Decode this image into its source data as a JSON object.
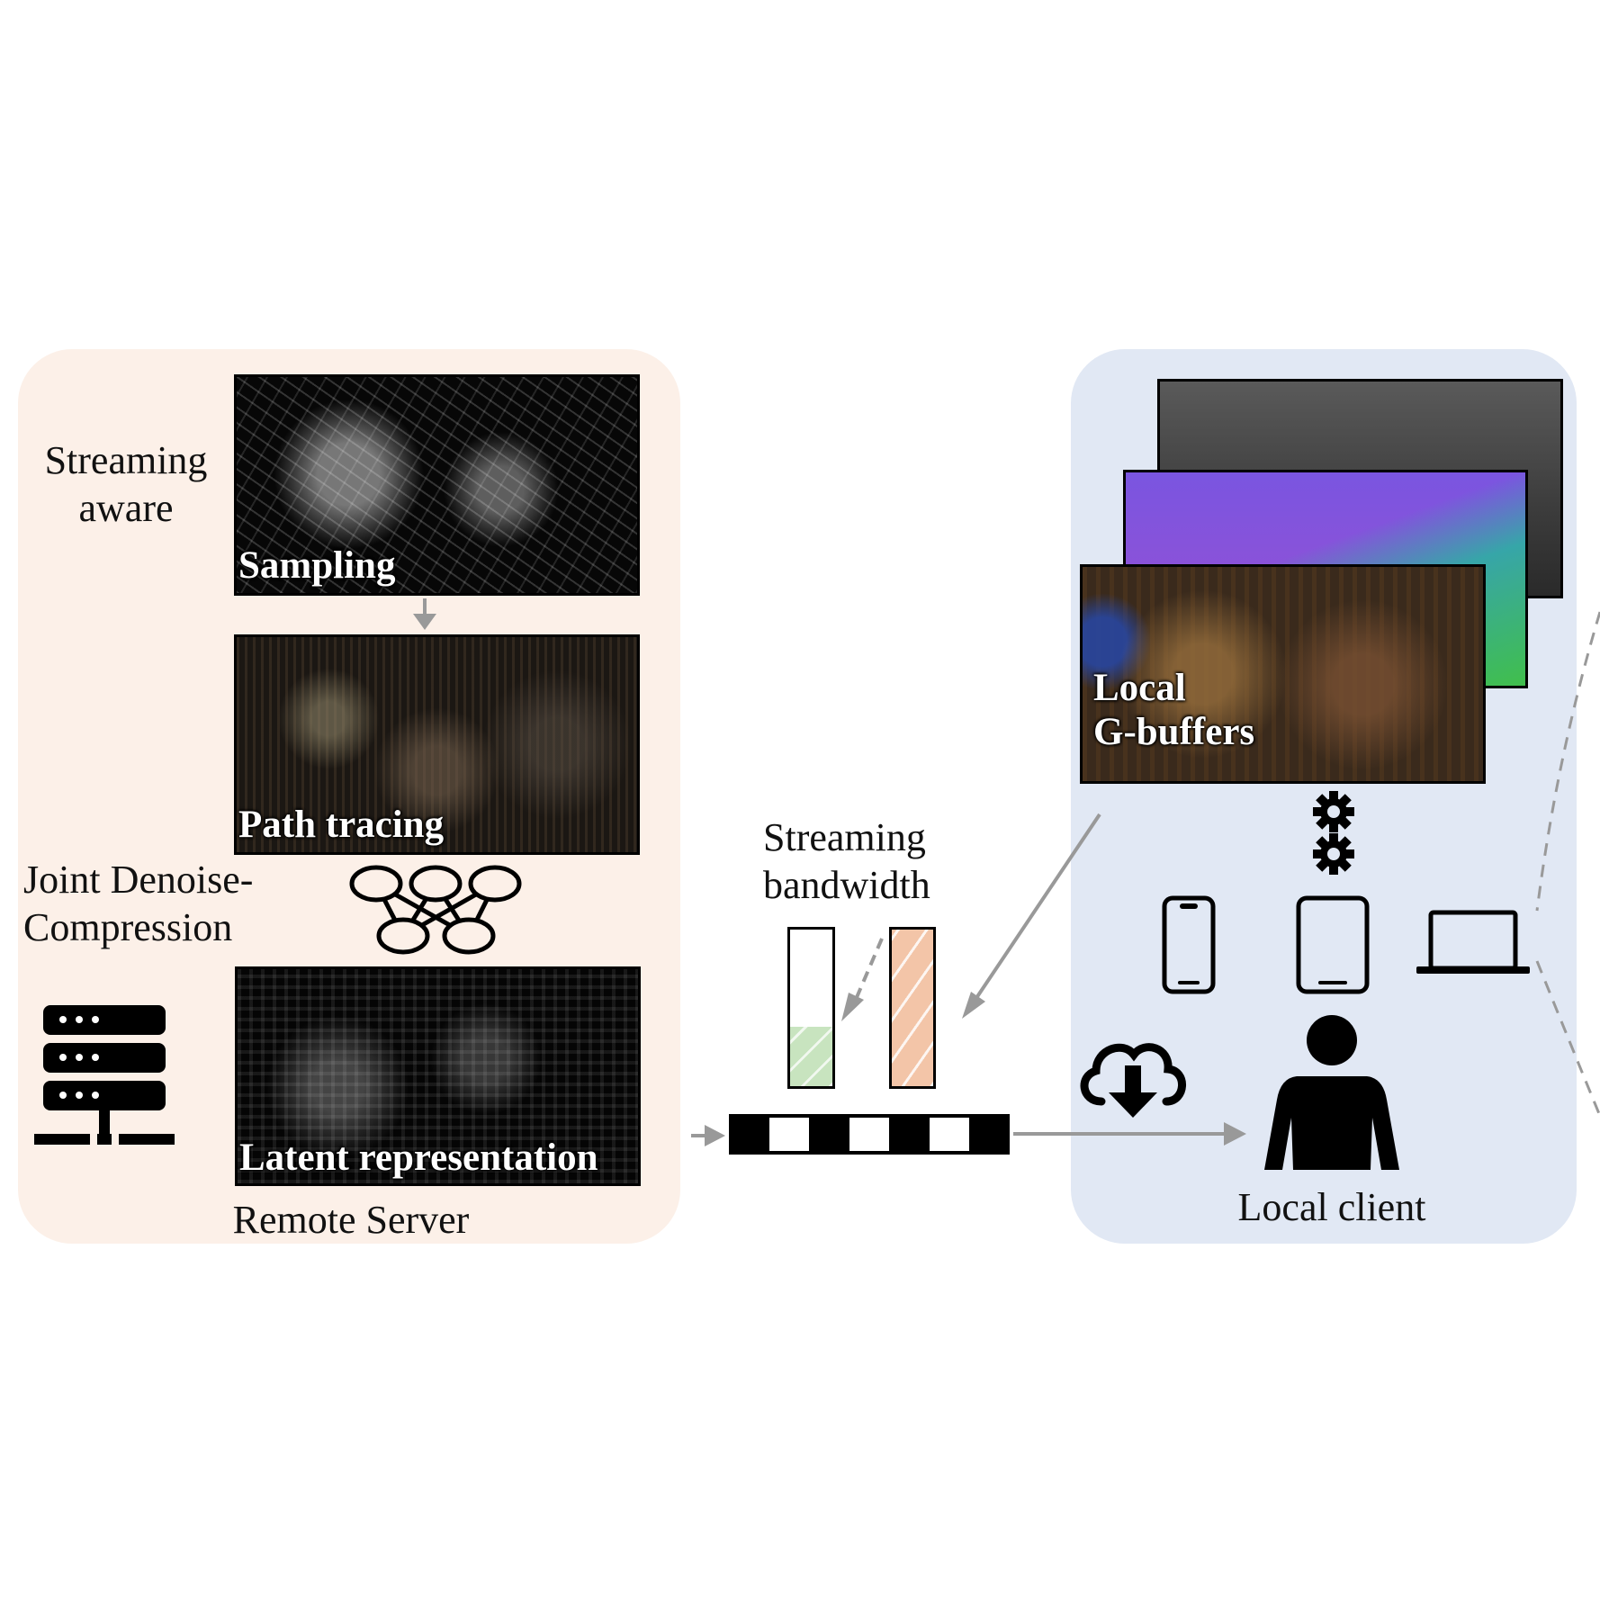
{
  "colors": {
    "server_bg": "#fcf0e8",
    "client_bg": "#e1e8f4",
    "arrow": "#999999",
    "bandwidth_used": "#c8e4bf",
    "bandwidth_required": "#f3c5a8"
  },
  "server": {
    "title": "Remote Server",
    "streaming_aware_line1": "Streaming",
    "streaming_aware_line2": "aware",
    "sampling_label": "Sampling",
    "path_tracing_label": "Path tracing",
    "joint_line1": "Joint Denoise-",
    "joint_line2": "Compression",
    "latent_label": "Latent representation",
    "icons": [
      "server-rack-icon",
      "neural-network-icon"
    ]
  },
  "bandwidth": {
    "label_line1": "Streaming",
    "label_line2": "bandwidth",
    "bars": [
      {
        "name": "used",
        "fill_fraction": 0.38,
        "color": "#c8e4bf"
      },
      {
        "name": "required",
        "fill_fraction": 1.0,
        "color": "#f3c5a8"
      }
    ],
    "bitstream_pattern": [
      1,
      0,
      1,
      0,
      1,
      0,
      1
    ]
  },
  "client": {
    "title": "Local client",
    "gbuffer_line1": "Local",
    "gbuffer_line2": "G-buffers",
    "icons": [
      "gear-icon",
      "gear-icon",
      "phone-icon",
      "tablet-icon",
      "laptop-icon",
      "cloud-download-icon",
      "person-icon"
    ]
  }
}
